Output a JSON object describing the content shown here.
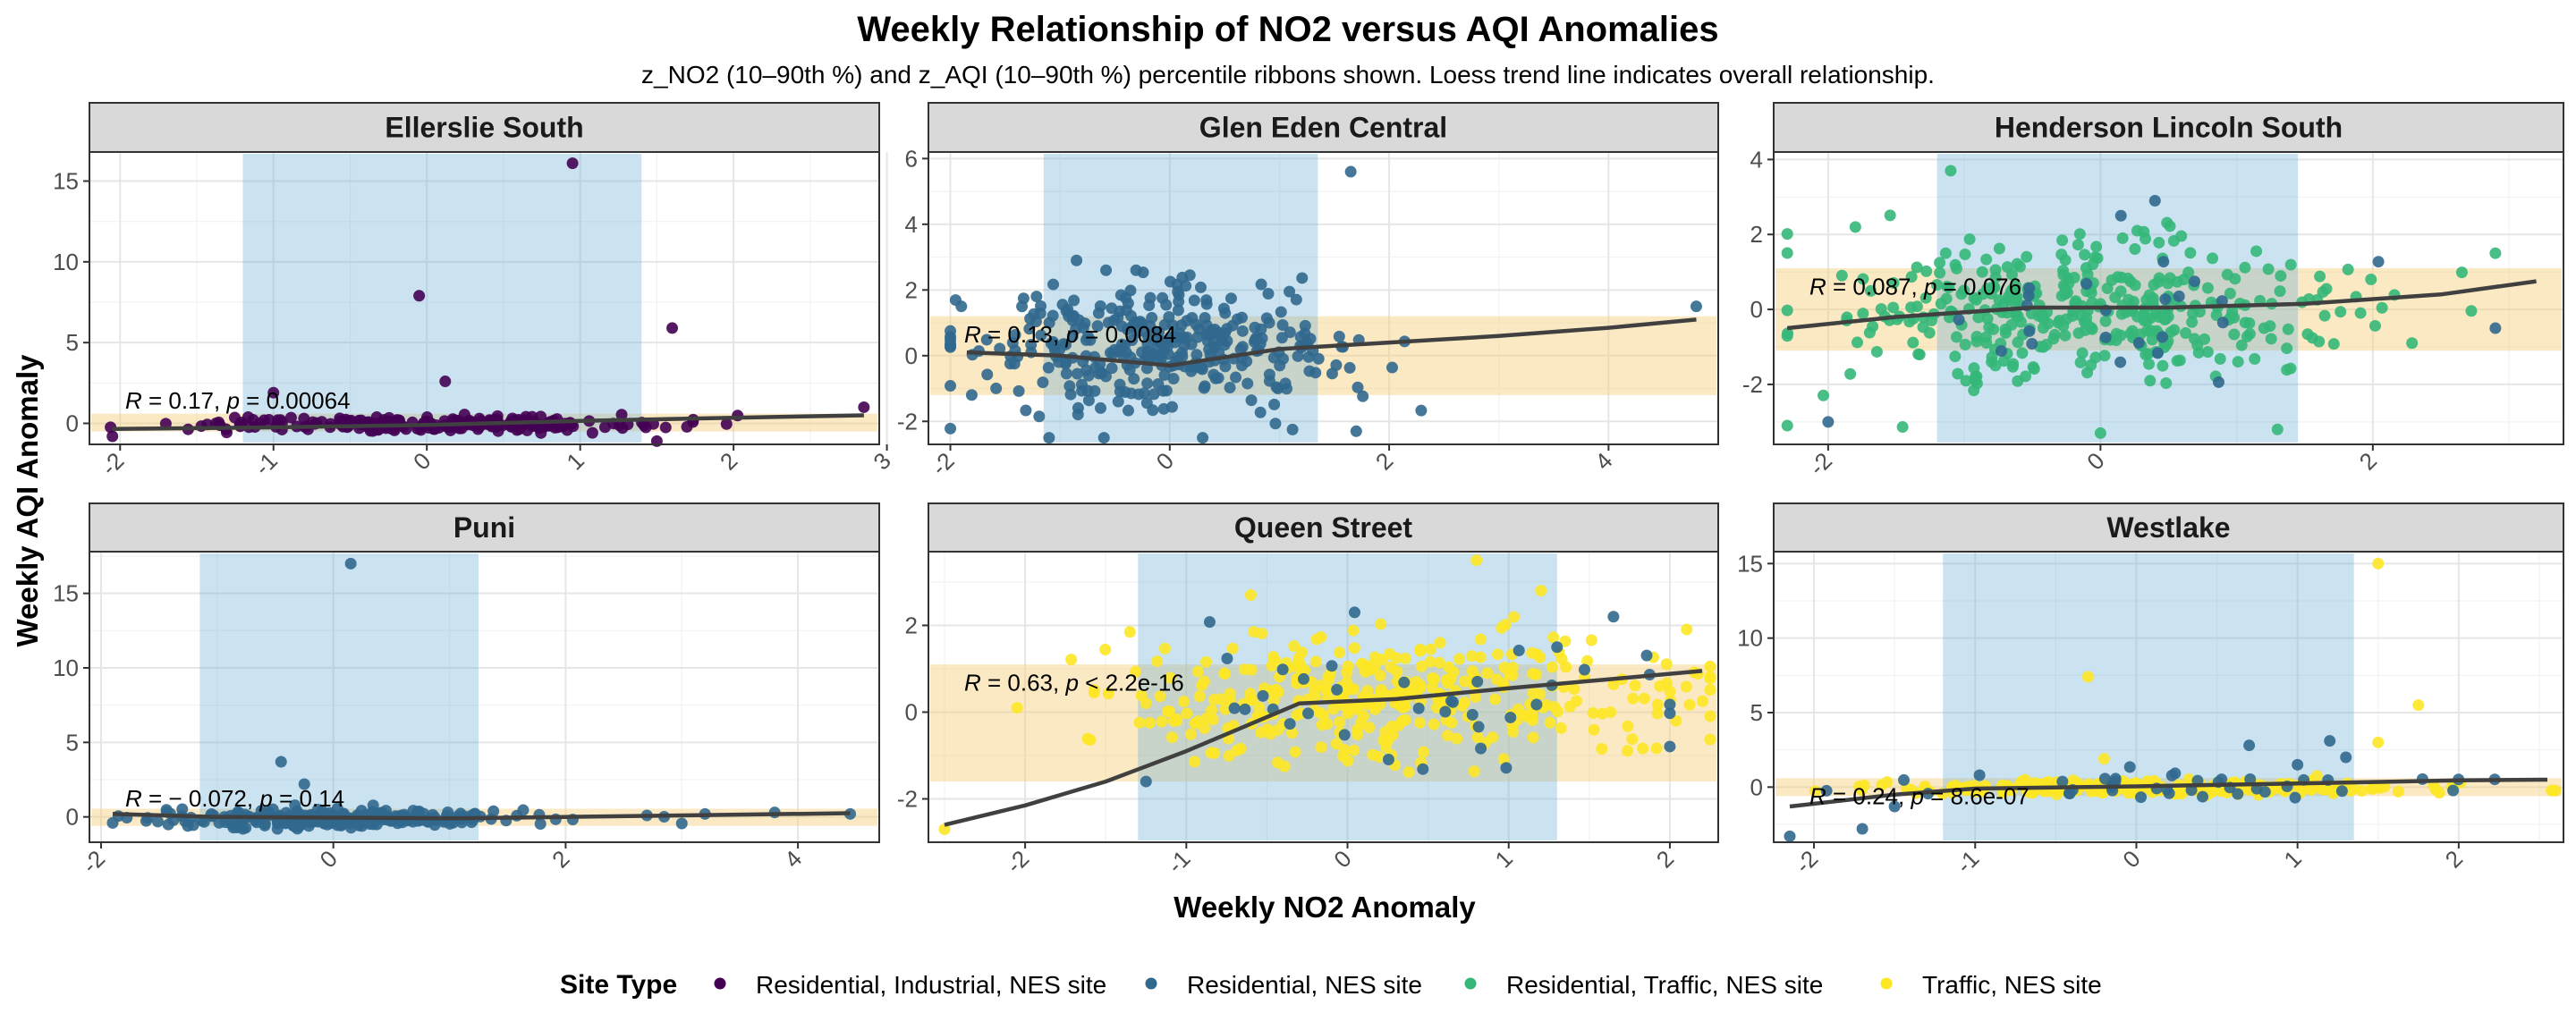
{
  "chart_data": {
    "type": "scatter",
    "title": "Weekly Relationship of NO2 versus AQI Anomalies",
    "subtitle": "z_NO2 (10–90th %) and z_AQI (10–90th %) percentile ribbons shown. Loess trend line indicates overall relationship.",
    "xlabel": "Weekly NO2 Anomaly",
    "ylabel": "Weekly AQI Anomaly",
    "legend": {
      "title": "Site Type",
      "position": "bottom",
      "items": [
        {
          "label": "Residential, Industrial, NES site",
          "color": "#440154"
        },
        {
          "label": "Residential, NES site",
          "color": "#31688e"
        },
        {
          "label": "Residential, Traffic, NES site",
          "color": "#35b779"
        },
        {
          "label": "Traffic, NES site",
          "color": "#fde725"
        }
      ]
    },
    "colors": {
      "ribbon_no2": "#6baed6",
      "ribbon_aqi": "#f5cf7a",
      "trend": "#404040",
      "strip_bg": "#d9d9d9"
    },
    "panels": [
      {
        "name": "Ellerslie South",
        "xlim": [
          -2.2,
          2.95
        ],
        "ylim": [
          -1.3,
          16.8
        ],
        "xticks": [
          -2,
          -1,
          0,
          1,
          2,
          3
        ],
        "yticks": [
          0,
          5,
          10,
          15
        ],
        "no2_ribbon": [
          -1.2,
          1.4
        ],
        "aqi_ribbon": [
          -0.5,
          0.6
        ],
        "stat": {
          "r": "0.17",
          "p": "= 0.00064"
        },
        "series": [
          {
            "type": "Residential, Industrial, NES site",
            "n": 230,
            "xmean": 0.0,
            "xsd": 0.75,
            "ymean": -0.05,
            "ysd": 0.22,
            "xmin": -2.1,
            "xmax": 2.8,
            "ymin": -1.0,
            "ymax": 0.9,
            "points": [
              [
                0.95,
                16.1
              ],
              [
                -0.05,
                7.9
              ],
              [
                1.6,
                5.9
              ],
              [
                0.12,
                2.6
              ],
              [
                -1.0,
                1.9
              ],
              [
                -2.05,
                -0.8
              ],
              [
                2.85,
                1.0
              ],
              [
                1.5,
                -1.1
              ]
            ]
          }
        ],
        "trend": [
          [
            -2.05,
            -0.35
          ],
          [
            -1.0,
            -0.25
          ],
          [
            0.0,
            -0.1
          ],
          [
            1.0,
            0.15
          ],
          [
            2.0,
            0.35
          ],
          [
            2.85,
            0.5
          ]
        ]
      },
      {
        "name": "Glen Eden Central",
        "xlim": [
          -2.2,
          5.0
        ],
        "ylim": [
          -2.7,
          6.2
        ],
        "xticks": [
          -2,
          0,
          2,
          4
        ],
        "yticks": [
          -2,
          0,
          2,
          4,
          6
        ],
        "no2_ribbon": [
          -1.15,
          1.35
        ],
        "aqi_ribbon": [
          -1.2,
          1.2
        ],
        "stat": {
          "r": "0.13",
          "p": "= 0.0084"
        },
        "series": [
          {
            "type": "Residential, NES site",
            "n": 340,
            "xmean": -0.2,
            "xsd": 0.85,
            "ymean": 0.2,
            "ysd": 0.9,
            "xmin": -2.0,
            "xmax": 2.5,
            "ymin": -2.5,
            "ymax": 2.6,
            "points": [
              [
                1.65,
                5.6
              ],
              [
                -0.85,
                2.9
              ],
              [
                4.8,
                1.5
              ],
              [
                -1.9,
                1.5
              ],
              [
                -0.6,
                -2.5
              ],
              [
                -1.1,
                -2.5
              ],
              [
                0.3,
                -2.5
              ],
              [
                1.7,
                -2.3
              ]
            ]
          }
        ],
        "trend": [
          [
            -1.85,
            0.1
          ],
          [
            -1.0,
            0.0
          ],
          [
            0.0,
            -0.3
          ],
          [
            1.0,
            0.2
          ],
          [
            2.0,
            0.4
          ],
          [
            3.0,
            0.6
          ],
          [
            4.0,
            0.85
          ],
          [
            4.8,
            1.1
          ]
        ]
      },
      {
        "name": "Henderson Lincoln South",
        "xlim": [
          -2.4,
          3.4
        ],
        "ylim": [
          -3.6,
          4.2
        ],
        "xticks": [
          -2,
          0,
          2
        ],
        "yticks": [
          -2,
          0,
          2,
          4
        ],
        "no2_ribbon": [
          -1.2,
          1.45
        ],
        "aqi_ribbon": [
          -1.1,
          1.1
        ],
        "stat": {
          "r": "0.087",
          "p": "= 0.076"
        },
        "series": [
          {
            "type": "Residential, Traffic, NES site",
            "n": 380,
            "xmean": -0.1,
            "xsd": 0.9,
            "ymean": 0.0,
            "ysd": 0.9,
            "xmin": -2.3,
            "xmax": 3.2,
            "ymin": -3.3,
            "ymax": 3.7,
            "points": [
              [
                -1.1,
                3.7
              ],
              [
                -2.3,
                -3.1
              ],
              [
                0.0,
                -3.3
              ],
              [
                2.9,
                1.5
              ],
              [
                -1.8,
                2.2
              ],
              [
                1.3,
                -3.2
              ]
            ]
          },
          {
            "type": "Residential, NES site",
            "n": 22,
            "xmean": 0.0,
            "xsd": 0.9,
            "ymean": 0.0,
            "ysd": 0.8,
            "xmin": -2.2,
            "xmax": 3.0,
            "ymin": -3.0,
            "ymax": 3.0,
            "points": [
              [
                0.4,
                2.9
              ],
              [
                0.15,
                2.5
              ],
              [
                -2.0,
                -3.0
              ],
              [
                2.9,
                -0.5
              ]
            ]
          }
        ],
        "trend": [
          [
            -2.3,
            -0.5
          ],
          [
            -1.5,
            -0.2
          ],
          [
            -0.5,
            0.05
          ],
          [
            0.5,
            0.05
          ],
          [
            1.5,
            0.15
          ],
          [
            2.5,
            0.4
          ],
          [
            3.2,
            0.75
          ]
        ]
      },
      {
        "name": "Puni",
        "xlim": [
          -2.1,
          4.7
        ],
        "ylim": [
          -1.7,
          17.8
        ],
        "xticks": [
          -2,
          0,
          2,
          4
        ],
        "yticks": [
          0,
          5,
          10,
          15
        ],
        "no2_ribbon": [
          -1.15,
          1.25
        ],
        "aqi_ribbon": [
          -0.6,
          0.55
        ],
        "stat": {
          "r": "− 0.072",
          "p": "= 0.14"
        },
        "series": [
          {
            "type": "Residential, NES site",
            "n": 260,
            "xmean": 0.0,
            "xsd": 0.85,
            "ymean": -0.1,
            "ysd": 0.3,
            "xmin": -1.9,
            "xmax": 3.0,
            "ymin": -0.9,
            "ymax": 1.4,
            "points": [
              [
                0.15,
                17.0
              ],
              [
                -0.45,
                3.7
              ],
              [
                -0.25,
                2.2
              ],
              [
                4.45,
                0.2
              ],
              [
                3.8,
                0.3
              ],
              [
                3.2,
                0.2
              ],
              [
                2.7,
                0.1
              ]
            ]
          }
        ],
        "trend": [
          [
            -1.9,
            0.2
          ],
          [
            -1.0,
            0.0
          ],
          [
            0.0,
            -0.05
          ],
          [
            1.0,
            -0.1
          ],
          [
            2.0,
            0.0
          ],
          [
            3.0,
            0.1
          ],
          [
            4.45,
            0.25
          ]
        ]
      },
      {
        "name": "Queen Street",
        "xlim": [
          -2.6,
          2.3
        ],
        "ylim": [
          -3.0,
          3.7
        ],
        "xticks": [
          -2,
          -1,
          0,
          1,
          2
        ],
        "yticks": [
          -2,
          0,
          2
        ],
        "no2_ribbon": [
          -1.3,
          1.3
        ],
        "aqi_ribbon": [
          -1.6,
          1.1
        ],
        "stat": {
          "r": "0.63",
          "p": "< 2.2e-16"
        },
        "series": [
          {
            "type": "Traffic, NES site",
            "n": 360,
            "xmean": 0.3,
            "xsd": 0.85,
            "ymean": 0.3,
            "ysd": 0.75,
            "xmin": -2.5,
            "xmax": 2.25,
            "ymin": -2.7,
            "ymax": 3.5,
            "points": [
              [
                0.8,
                3.5
              ],
              [
                -2.5,
                -2.7
              ],
              [
                -2.05,
                0.1
              ],
              [
                -1.35,
                1.85
              ],
              [
                -0.6,
                2.7
              ],
              [
                1.2,
                2.8
              ]
            ]
          },
          {
            "type": "Residential, NES site",
            "n": 36,
            "xmean": 0.6,
            "xsd": 0.8,
            "ymean": 0.4,
            "ysd": 0.7,
            "xmin": -1.3,
            "xmax": 2.0,
            "ymin": -1.6,
            "ymax": 2.3,
            "points": [
              [
                1.65,
                2.2
              ],
              [
                -1.25,
                -1.6
              ],
              [
                1.3,
                1.5
              ]
            ]
          }
        ],
        "trend": [
          [
            -2.5,
            -2.6
          ],
          [
            -2.0,
            -2.15
          ],
          [
            -1.5,
            -1.6
          ],
          [
            -1.0,
            -0.9
          ],
          [
            -0.3,
            0.2
          ],
          [
            0.3,
            0.3
          ],
          [
            1.0,
            0.55
          ],
          [
            1.6,
            0.75
          ],
          [
            2.2,
            0.95
          ]
        ]
      },
      {
        "name": "Westlake",
        "xlim": [
          -2.25,
          2.65
        ],
        "ylim": [
          -3.7,
          15.8
        ],
        "xticks": [
          -2,
          -1,
          0,
          1,
          2
        ],
        "yticks": [
          0,
          5,
          10,
          15
        ],
        "no2_ribbon": [
          -1.2,
          1.35
        ],
        "aqi_ribbon": [
          -0.6,
          0.6
        ],
        "stat": {
          "r": "0.24",
          "p": "= 8.6e-07"
        },
        "series": [
          {
            "type": "Traffic, NES site",
            "n": 330,
            "xmean": 0.1,
            "xsd": 0.8,
            "ymean": -0.05,
            "ysd": 0.2,
            "xmin": -2.1,
            "xmax": 2.6,
            "ymin": -0.9,
            "ymax": 1.0,
            "points": [
              [
                1.5,
                15.0
              ],
              [
                -0.3,
                7.4
              ],
              [
                1.75,
                5.5
              ],
              [
                1.5,
                3.0
              ],
              [
                -0.2,
                1.9
              ]
            ]
          },
          {
            "type": "Residential, NES site",
            "n": 40,
            "xmean": 0.2,
            "xsd": 0.9,
            "ymean": 0.1,
            "ysd": 0.5,
            "xmin": -2.2,
            "xmax": 2.3,
            "ymin": -3.3,
            "ymax": 3.0,
            "points": [
              [
                -2.15,
                -3.3
              ],
              [
                -1.7,
                -2.8
              ],
              [
                0.7,
                2.8
              ],
              [
                1.3,
                2.0
              ],
              [
                1.2,
                3.1
              ],
              [
                1.0,
                1.5
              ],
              [
                -1.5,
                -1.3
              ]
            ]
          }
        ],
        "trend": [
          [
            -2.15,
            -1.3
          ],
          [
            -1.5,
            -0.5
          ],
          [
            -1.0,
            -0.1
          ],
          [
            0.0,
            0.05
          ],
          [
            1.0,
            0.25
          ],
          [
            2.0,
            0.45
          ],
          [
            2.55,
            0.5
          ]
        ]
      }
    ]
  }
}
